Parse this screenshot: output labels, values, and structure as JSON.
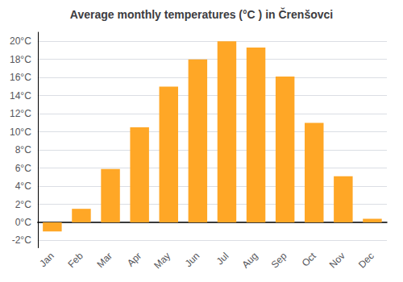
{
  "chart_data": {
    "type": "bar",
    "title": "Average monthly temperatures (°C ) in Črenšovci",
    "categories": [
      "Jan",
      "Feb",
      "Mar",
      "Apr",
      "May",
      "Jun",
      "Jul",
      "Aug",
      "Sep",
      "Oct",
      "Nov",
      "Dec"
    ],
    "values": [
      -1.0,
      1.5,
      5.9,
      10.5,
      15.0,
      18.0,
      20.0,
      19.3,
      16.1,
      11.0,
      5.1,
      0.4
    ],
    "color": "#FFA726",
    "ylim": [
      -2.8,
      21.0
    ],
    "yticks": [
      {
        "value": -2,
        "label": "-2°C"
      },
      {
        "value": 0,
        "label": "0°C"
      },
      {
        "value": 2,
        "label": "2°C"
      },
      {
        "value": 4,
        "label": "4°C"
      },
      {
        "value": 6,
        "label": "6°C"
      },
      {
        "value": 8,
        "label": "8°C"
      },
      {
        "value": 10,
        "label": "10°C"
      },
      {
        "value": 12,
        "label": "12°C"
      },
      {
        "value": 14,
        "label": "14°C"
      },
      {
        "value": 16,
        "label": "16°C"
      },
      {
        "value": 18,
        "label": "18°C"
      },
      {
        "value": 20,
        "label": "20°C"
      }
    ],
    "grid": true
  }
}
